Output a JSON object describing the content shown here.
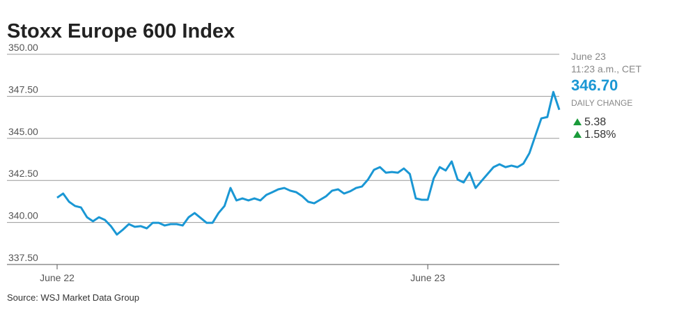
{
  "chart_data": {
    "type": "line",
    "title": "Stoxx Europe 600 Index",
    "source": "Source: WSJ Market Data Group",
    "summary": {
      "date": "June 23",
      "time": "11:23 a.m., CET",
      "last": "346.70",
      "change_label": "DAILY CHANGE",
      "change": "5.38",
      "change_pct": "1.58%"
    },
    "categories": [
      "June 22",
      null,
      null,
      null,
      null,
      null,
      null,
      null,
      null,
      null,
      null,
      null,
      null,
      null,
      null,
      null,
      null,
      null,
      null,
      null,
      null,
      null,
      null,
      null,
      null,
      null,
      null,
      null,
      null,
      null,
      null,
      null,
      null,
      null,
      null,
      null,
      null,
      null,
      null,
      null,
      null,
      null,
      null,
      null,
      null,
      null,
      null,
      null,
      null,
      null,
      null,
      null,
      null,
      null,
      null,
      null,
      null,
      null,
      null,
      null,
      null,
      null,
      "June 23",
      null,
      null,
      null,
      null,
      null,
      null,
      null,
      null,
      null,
      null,
      null,
      null,
      null,
      null,
      null,
      null,
      null,
      null,
      null,
      null,
      null,
      null
    ],
    "series": [
      {
        "name": "Stoxx Europe 600",
        "color": "#1a97d4",
        "values": [
          341.47,
          341.72,
          341.23,
          340.98,
          340.89,
          340.31,
          340.07,
          340.31,
          340.15,
          339.78,
          339.28,
          339.57,
          339.9,
          339.74,
          339.78,
          339.65,
          339.98,
          339.98,
          339.82,
          339.9,
          339.9,
          339.82,
          340.31,
          340.56,
          340.27,
          339.98,
          339.98,
          340.56,
          340.98,
          342.05,
          341.31,
          341.43,
          341.31,
          341.43,
          341.31,
          341.64,
          341.8,
          341.97,
          342.05,
          341.89,
          341.8,
          341.56,
          341.23,
          341.14,
          341.35,
          341.56,
          341.89,
          341.97,
          341.72,
          341.85,
          342.05,
          342.14,
          342.55,
          343.13,
          343.29,
          342.96,
          343.0,
          342.96,
          343.21,
          342.88,
          341.43,
          341.35,
          341.35,
          342.63,
          343.29,
          343.09,
          343.63,
          342.55,
          342.38,
          342.96,
          342.05,
          342.47,
          342.88,
          343.29,
          343.46,
          343.29,
          343.38,
          343.29,
          343.5,
          344.12,
          345.16,
          346.19,
          346.27,
          347.76,
          346.7
        ]
      }
    ],
    "ylim": [
      337.5,
      350
    ],
    "yticks": [
      {
        "value": 337.5,
        "label": "337.50"
      },
      {
        "value": 340,
        "label": "340.00"
      },
      {
        "value": 342.5,
        "label": "342.50"
      },
      {
        "value": 345,
        "label": "345.00"
      },
      {
        "value": 347.5,
        "label": "347.50"
      },
      {
        "value": 350,
        "label": "350.00"
      }
    ],
    "grid": true
  }
}
